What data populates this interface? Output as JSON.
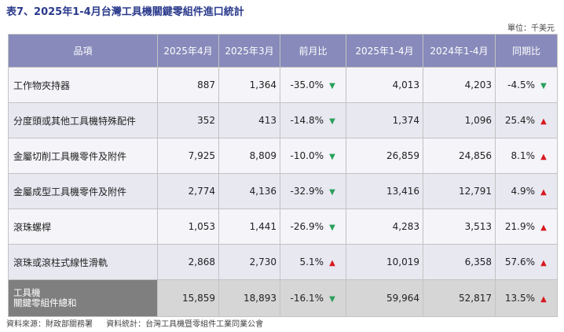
{
  "title": "表7、2025年1-4月台灣工具機關鍵零組件進口統計",
  "unit": "單位：千美元",
  "table": {
    "headers": [
      "品項",
      "2025年4月",
      "2025年3月",
      "前月比",
      "2025年1-4月",
      "2024年1-4月",
      "同期比"
    ],
    "rows": [
      {
        "name": "工作物夾持器",
        "apr": "887",
        "mar": "1,364",
        "mom": "-35.0%",
        "mom_dir": "down",
        "ytd25": "4,013",
        "ytd24": "4,203",
        "yoy": "-4.5%",
        "yoy_dir": "down"
      },
      {
        "name": "分度頭或其他工具機特殊配件",
        "apr": "352",
        "mar": "413",
        "mom": "-14.8%",
        "mom_dir": "down",
        "ytd25": "1,374",
        "ytd24": "1,096",
        "yoy": "25.4%",
        "yoy_dir": "up"
      },
      {
        "name": "金屬切削工具機零件及附件",
        "apr": "7,925",
        "mar": "8,809",
        "mom": "-10.0%",
        "mom_dir": "down",
        "ytd25": "26,859",
        "ytd24": "24,856",
        "yoy": "8.1%",
        "yoy_dir": "up"
      },
      {
        "name": "金屬成型工具機零件及附件",
        "apr": "2,774",
        "mar": "4,136",
        "mom": "-32.9%",
        "mom_dir": "down",
        "ytd25": "13,416",
        "ytd24": "12,791",
        "yoy": "4.9%",
        "yoy_dir": "up"
      },
      {
        "name": "滾珠螺桿",
        "apr": "1,053",
        "mar": "1,441",
        "mom": "-26.9%",
        "mom_dir": "down",
        "ytd25": "4,283",
        "ytd24": "3,513",
        "yoy": "21.9%",
        "yoy_dir": "up"
      },
      {
        "name": "滾珠或滾柱式線性滑軌",
        "apr": "2,868",
        "mar": "2,730",
        "mom": "5.1%",
        "mom_dir": "up",
        "ytd25": "10,019",
        "ytd24": "6,358",
        "yoy": "57.6%",
        "yoy_dir": "up"
      }
    ],
    "total": {
      "name_line1": "工具機",
      "name_line2": "關鍵零組件總和",
      "apr": "15,859",
      "mar": "18,893",
      "mom": "-16.1%",
      "mom_dir": "down",
      "ytd25": "59,964",
      "ytd24": "52,817",
      "yoy": "13.5%",
      "yoy_dir": "up"
    }
  },
  "footer": {
    "source": "資料來源：財政部關務署",
    "compiled": "資料統計：台灣工具機暨零組件工業同業公會"
  },
  "colors": {
    "header_bg": "#878aba",
    "total_label_bg": "#7f7f7f",
    "arrow_up": "#d8191f",
    "arrow_down": "#2aa05a",
    "title": "#2a3a8c"
  }
}
